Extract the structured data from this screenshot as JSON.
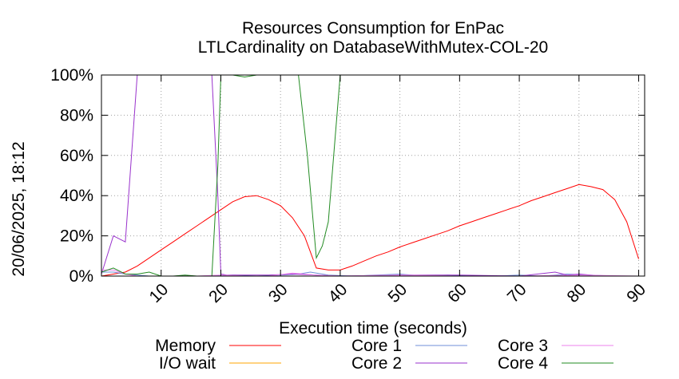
{
  "chart_data": {
    "type": "line",
    "title": "Resources Consumption for EnPac",
    "subtitle": "LTLCardinality on DatabaseWithMutex-COL-20",
    "xlabel": "Execution time (seconds)",
    "ylabel": "",
    "side_label": "20/06/2025, 18:12",
    "xlim": [
      0,
      91
    ],
    "ylim": [
      0,
      100
    ],
    "x_ticks": [
      10,
      20,
      30,
      40,
      50,
      60,
      70,
      80,
      90
    ],
    "y_ticks": [
      0,
      20,
      40,
      60,
      80,
      100
    ],
    "x_tick_labels": [
      "10",
      "20",
      "30",
      "40",
      "50",
      "60",
      "70",
      "80",
      "90"
    ],
    "y_tick_labels": [
      "0%",
      "20%",
      "40%",
      "60%",
      "80%",
      "100%"
    ],
    "grid": true,
    "legend_position": "bottom",
    "series": [
      {
        "name": "Memory",
        "color": "#ff0000",
        "x": [
          0,
          2,
          4,
          6,
          8,
          10,
          12,
          14,
          16,
          18,
          20,
          22,
          24,
          26,
          28,
          30,
          32,
          34,
          36,
          38,
          40,
          42,
          44,
          46,
          48,
          50,
          52,
          54,
          56,
          58,
          60,
          62,
          64,
          66,
          68,
          70,
          72,
          74,
          76,
          78,
          80,
          82,
          84,
          86,
          88,
          90
        ],
        "values": [
          0,
          1,
          2,
          5,
          9,
          13,
          17,
          21,
          25,
          29,
          33,
          37,
          39.5,
          40,
          38,
          35,
          29,
          20,
          4,
          3,
          3,
          5,
          7.5,
          10,
          12,
          14.5,
          16.5,
          18.5,
          20.5,
          22.5,
          25,
          27,
          29,
          31,
          33,
          35,
          37.5,
          39.5,
          41.5,
          43.5,
          45.5,
          44.5,
          43,
          38,
          27,
          8.5
        ]
      },
      {
        "name": "I/O wait",
        "color": "#ffa500",
        "x": [
          0,
          2,
          4,
          6,
          8,
          10,
          20,
          30,
          40,
          50,
          60,
          70,
          80,
          90
        ],
        "values": [
          0,
          0,
          0,
          0,
          0,
          0,
          0,
          0,
          0,
          0,
          0,
          0,
          0,
          0
        ]
      },
      {
        "name": "Core 1",
        "color": "#6f8fd8",
        "x": [
          0,
          2,
          4,
          6,
          8,
          10,
          14,
          18,
          22,
          26,
          30,
          33,
          35,
          38,
          42,
          46,
          50,
          54,
          58,
          62,
          66,
          70,
          74,
          78,
          82,
          86,
          90
        ],
        "values": [
          2,
          2,
          1,
          0.5,
          0,
          0,
          0,
          0,
          0.5,
          0,
          0.5,
          1,
          2,
          0.5,
          0,
          0.5,
          1,
          0,
          0.5,
          0,
          0,
          0.5,
          0,
          1,
          0.5,
          0,
          0
        ]
      },
      {
        "name": "Core 2",
        "color": "#9932cc",
        "x": [
          0,
          2,
          4,
          6,
          8,
          14,
          17,
          18.5,
          19.5,
          20,
          21,
          24,
          28,
          32,
          36,
          40,
          50,
          60,
          70,
          76,
          78,
          80,
          84,
          90
        ],
        "values": [
          1,
          20,
          17,
          100,
          100,
          100,
          100,
          100,
          40,
          1,
          0.5,
          0.5,
          0.5,
          1,
          0.5,
          0,
          0.5,
          0.5,
          0,
          2,
          0.5,
          1,
          0,
          0
        ]
      },
      {
        "name": "Core 3",
        "color": "#ee82ee",
        "x": [
          0,
          2,
          4,
          6,
          8,
          12,
          16,
          20,
          24,
          28,
          32,
          36,
          40,
          50,
          60,
          70,
          80,
          90
        ],
        "values": [
          3,
          3,
          1,
          0,
          0,
          0,
          0,
          0.5,
          0,
          0,
          1.5,
          0.5,
          0,
          0.5,
          0,
          0,
          0.5,
          0
        ]
      },
      {
        "name": "Core 4",
        "color": "#228b22",
        "x": [
          0,
          2,
          4,
          6,
          8,
          10,
          12,
          14,
          16,
          17.5,
          18.5,
          19.5,
          20,
          22,
          24,
          26,
          28,
          30,
          32,
          33,
          34.5,
          36,
          37,
          38,
          40,
          42,
          50,
          60,
          70,
          80,
          90
        ],
        "values": [
          2,
          4,
          1,
          1,
          2,
          0,
          0,
          0.5,
          0,
          0,
          0,
          55,
          100,
          100,
          99,
          100,
          100,
          100,
          100,
          100,
          60,
          9,
          15,
          27,
          100,
          100,
          100,
          100,
          100,
          100,
          100
        ]
      }
    ]
  }
}
